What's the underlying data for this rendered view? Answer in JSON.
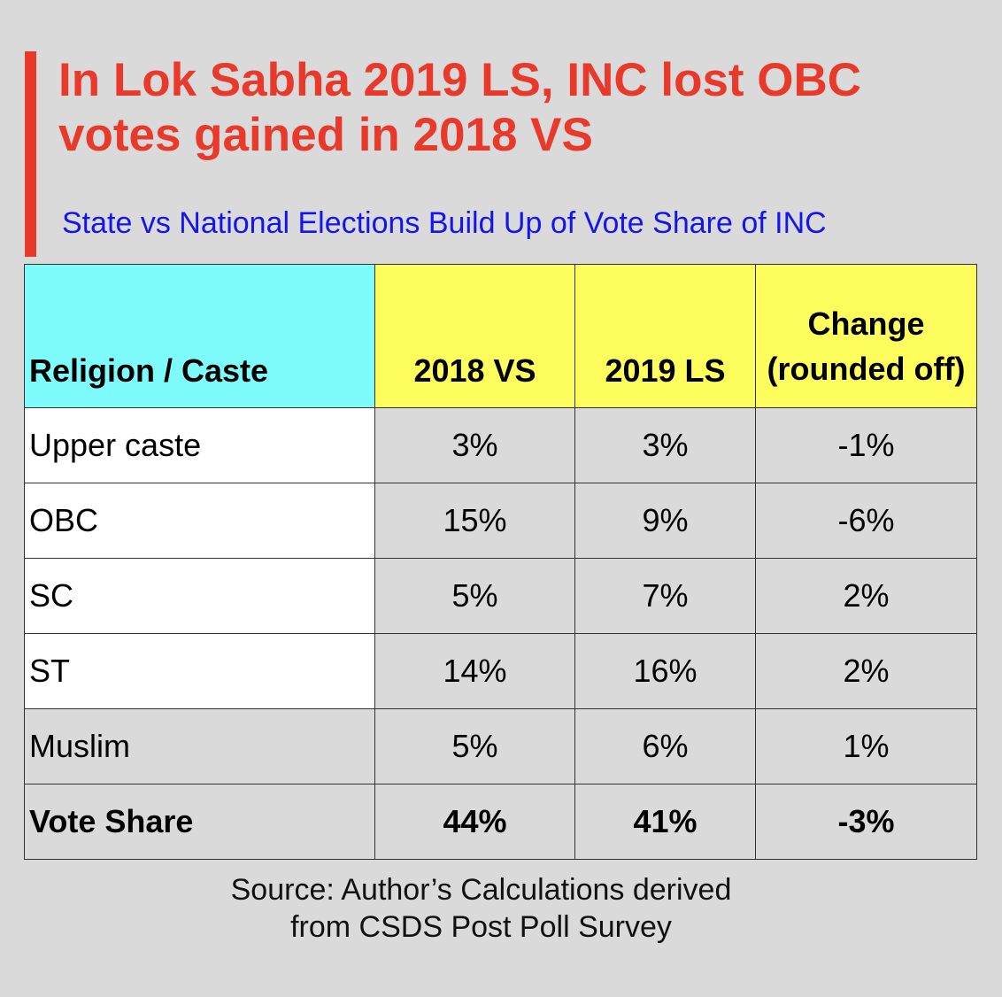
{
  "header": {
    "title": "In Lok Sabha 2019 LS, INC lost OBC votes gained in 2018 VS",
    "subtitle": "State vs National Elections Build Up of Vote Share of INC"
  },
  "footer": {
    "source_line1": "Source: Author’s Calculations derived",
    "source_line2": "from CSDS Post Poll Survey"
  },
  "colors": {
    "accent": "#e8392a",
    "subtitle": "#1414f0",
    "header_label_cell": "#7efcfc",
    "header_year_cell": "#fefd5e",
    "background": "#dadada"
  },
  "chart_data": {
    "type": "table",
    "title": "In Lok Sabha 2019 LS, INC lost OBC votes gained in 2018 VS",
    "subtitle": "State vs National Elections Build Up of Vote Share of INC",
    "columns": [
      "Religion / Caste",
      "2018 VS",
      "2019 LS",
      "Change (rounded off)"
    ],
    "rows": [
      {
        "label": "Upper caste",
        "vs2018": "3%",
        "ls2019": "3%",
        "change": "-1%"
      },
      {
        "label": "OBC",
        "vs2018": "15%",
        "ls2019": "9%",
        "change": "-6%"
      },
      {
        "label": "SC",
        "vs2018": "5%",
        "ls2019": "7%",
        "change": "2%"
      },
      {
        "label": "ST",
        "vs2018": "14%",
        "ls2019": "16%",
        "change": "2%"
      },
      {
        "label": "Muslim",
        "vs2018": "5%",
        "ls2019": "6%",
        "change": "1%"
      },
      {
        "label": "Vote Share",
        "vs2018": "44%",
        "ls2019": "41%",
        "change": "-3%"
      }
    ],
    "change_header_line1": "Change",
    "change_header_line2": "(rounded off)"
  }
}
